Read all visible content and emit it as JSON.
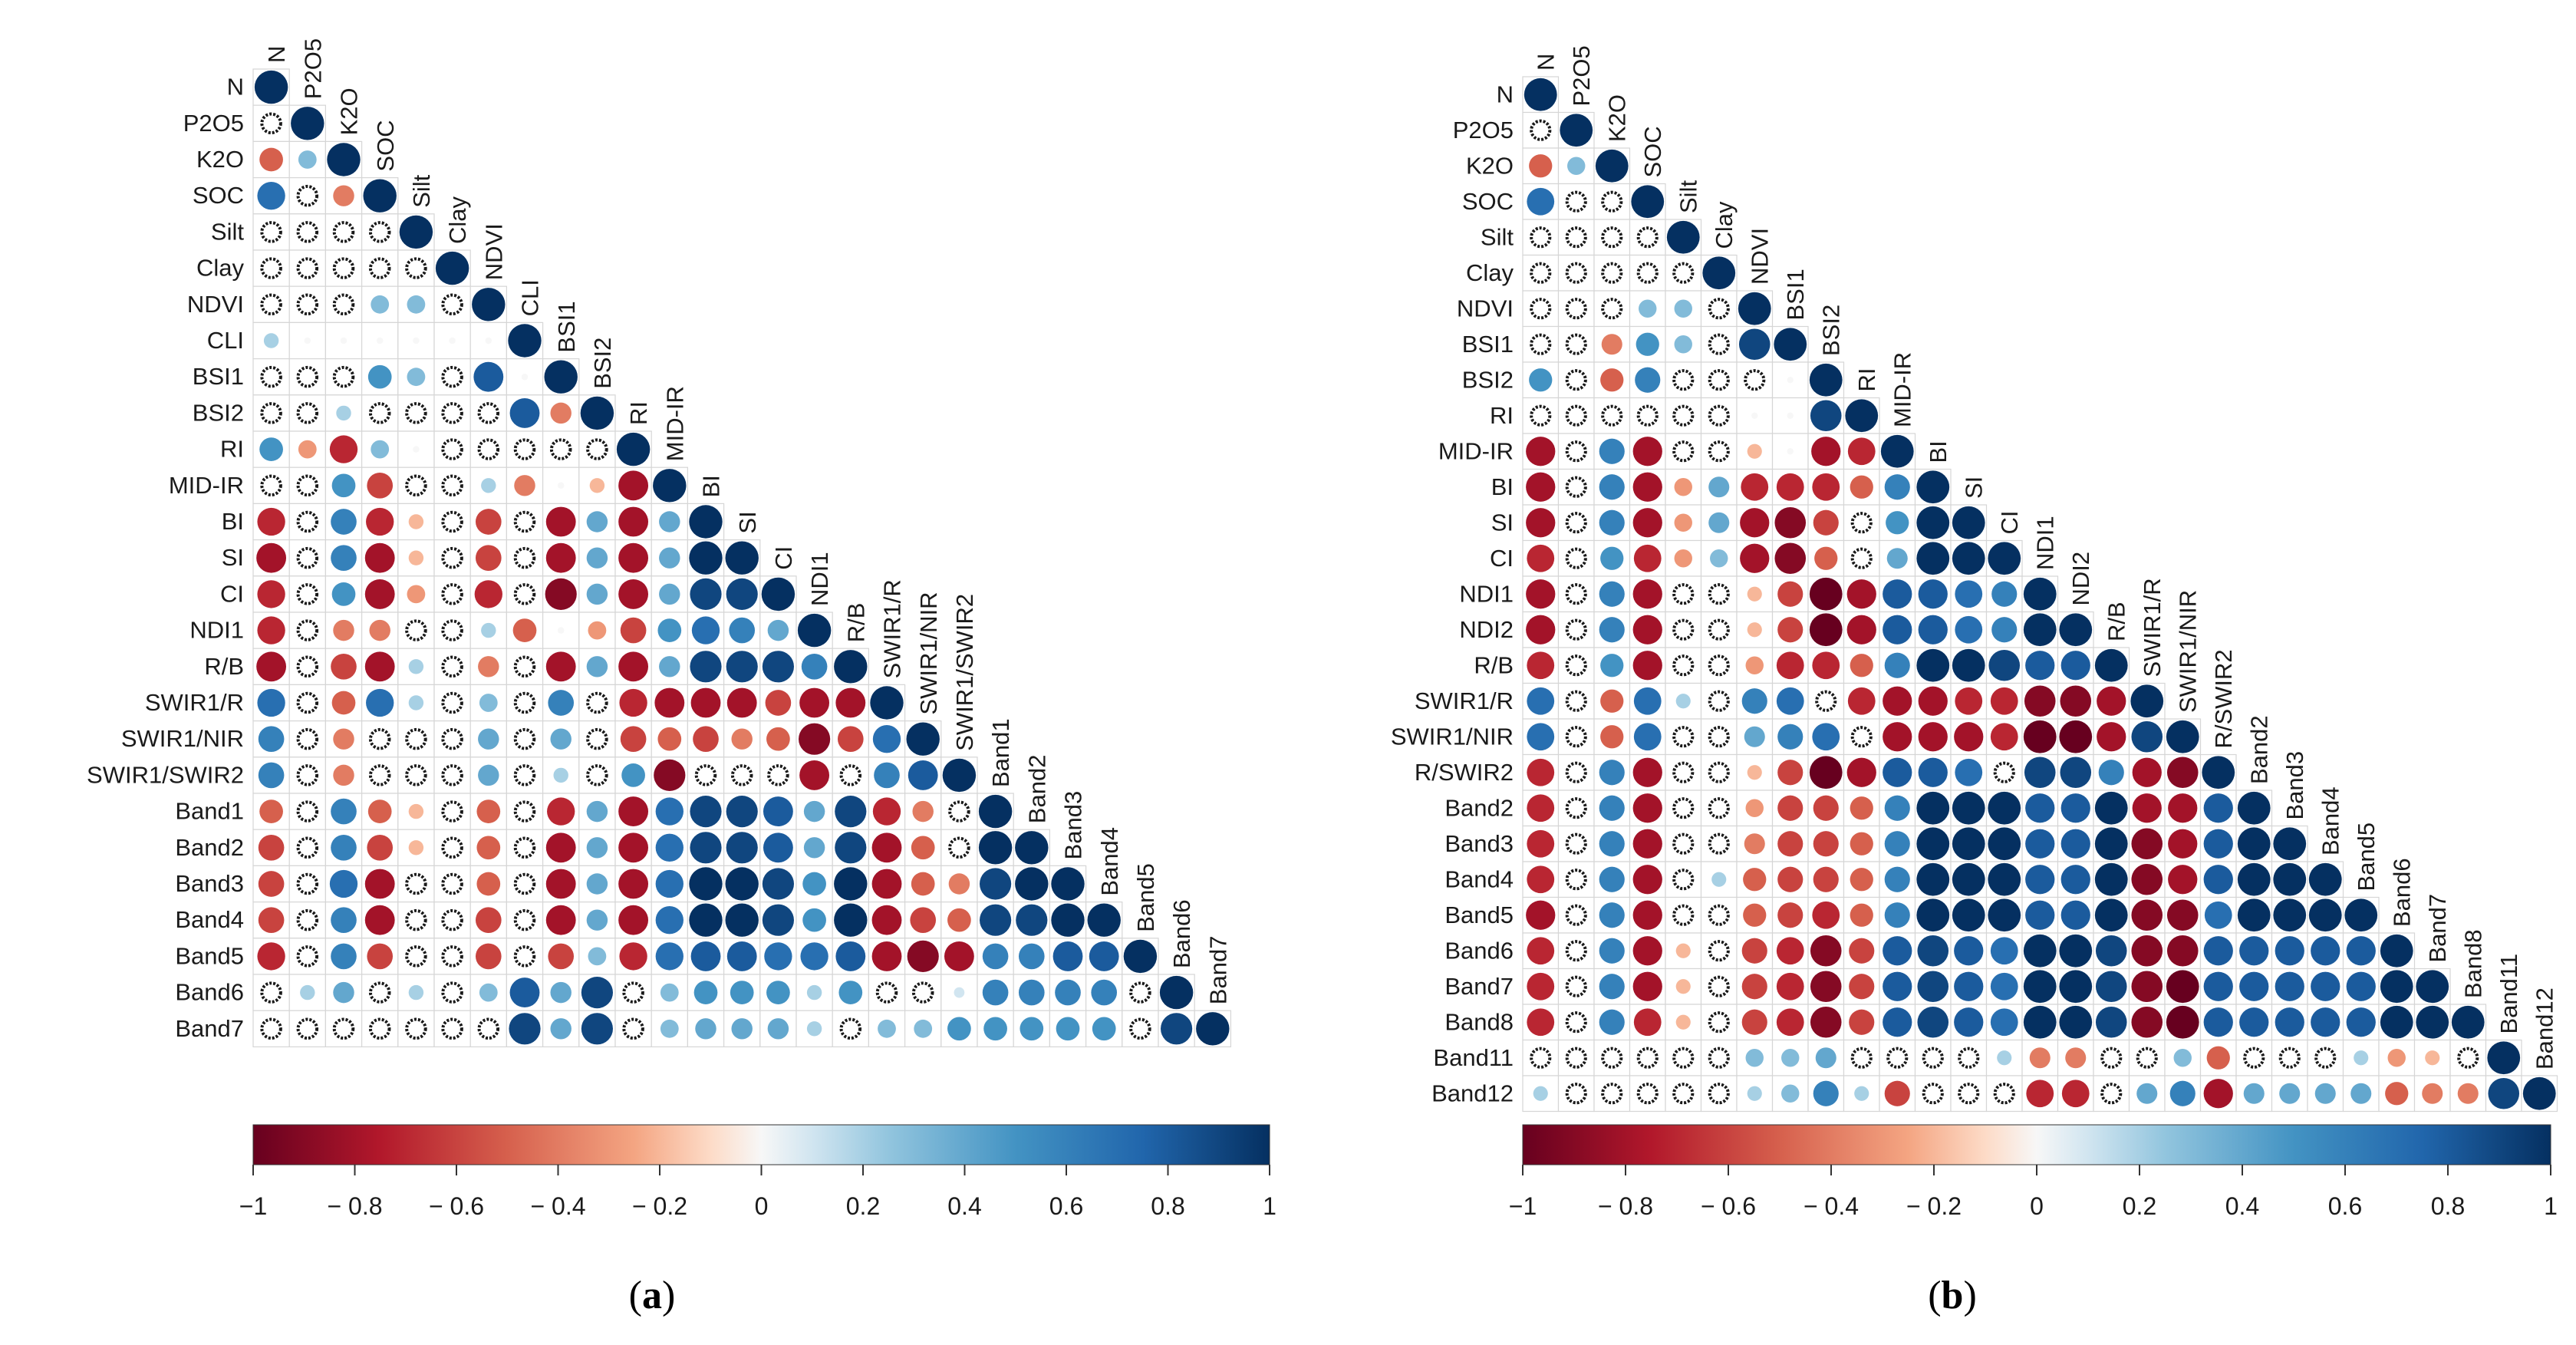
{
  "figure": {
    "panels": [
      {
        "id": "a",
        "caption": "(a)",
        "colorbar_ticks": [
          "−1",
          "− 0.8",
          "− 0.6",
          "− 0.4",
          "− 0.2",
          "0",
          "0.2",
          "0.4",
          "0.6",
          "0.8",
          "1"
        ],
        "variables": [
          "N",
          "P2O5",
          "K2O",
          "SOC",
          "Silt",
          "Clay",
          "NDVI",
          "CLI",
          "BSI1",
          "BSI2",
          "RI",
          "MID-IR",
          "BI",
          "SI",
          "CI",
          "NDI1",
          "R/B",
          "SWIR1/R",
          "SWIR1/NIR",
          "SWIR1/SWIR2",
          "Band1",
          "Band2",
          "Band3",
          "Band4",
          "Band5",
          "Band6",
          "Band7"
        ]
      },
      {
        "id": "b",
        "caption": "(b)",
        "colorbar_ticks": [
          "−1",
          "− 0.8",
          "− 0.6",
          "− 0.4",
          "− 0.2",
          "0",
          "0.2",
          "0.4",
          "0.6",
          "0.8",
          "1"
        ],
        "variables": [
          "N",
          "P2O5",
          "K2O",
          "SOC",
          "Silt",
          "Clay",
          "NDVI",
          "BSI1",
          "BSI2",
          "RI",
          "MID-IR",
          "BI",
          "SI",
          "CI",
          "NDI1",
          "NDI2",
          "R/B",
          "SWIR1/R",
          "SWIR1/NIR",
          "R/SWIR2",
          "Band2",
          "Band3",
          "Band4",
          "Band5",
          "Band6",
          "Band7",
          "Band8",
          "Band11",
          "Band12"
        ]
      }
    ]
  },
  "chart_data": [
    {
      "type": "heatmap",
      "subtype": "correlation-lower-triangle",
      "title": "(a)",
      "variables": [
        "N",
        "P2O5",
        "K2O",
        "SOC",
        "Silt",
        "Clay",
        "NDVI",
        "CLI",
        "BSI1",
        "BSI2",
        "RI",
        "MID-IR",
        "BI",
        "SI",
        "CI",
        "NDI1",
        "R/B",
        "SWIR1/R",
        "SWIR1/NIR",
        "SWIR1/SWIR2",
        "Band1",
        "Band2",
        "Band3",
        "Band4",
        "Band5",
        "Band6",
        "Band7"
      ],
      "colorbar": {
        "min": -1,
        "max": 1,
        "ticks": [
          -1,
          -0.8,
          -0.6,
          -0.4,
          -0.2,
          0,
          0.2,
          0.4,
          0.6,
          0.8,
          1
        ]
      },
      "significance_marker": "hollow circle = non-significant",
      "matrix": [
        [
          "1"
        ],
        [
          "ns",
          "1"
        ],
        [
          "-0.5",
          "0.3",
          "1"
        ],
        [
          "0.7",
          "ns",
          "-0.4",
          "1"
        ],
        [
          "ns",
          "ns",
          "ns",
          "ns",
          "1"
        ],
        [
          "ns",
          "ns",
          "ns",
          "ns",
          "ns",
          "1"
        ],
        [
          "ns",
          "ns",
          "ns",
          "0.3",
          "0.3",
          "ns",
          "1"
        ],
        [
          "0.2",
          "0",
          "0",
          "0",
          "0",
          "0",
          "0",
          "1"
        ],
        [
          "ns",
          "ns",
          "ns",
          "0.5",
          "0.3",
          "ns",
          "0.8",
          "0",
          "1"
        ],
        [
          "ns",
          "ns",
          "0.2",
          "ns",
          "ns",
          "ns",
          "ns",
          "0.8",
          "-0.4",
          "1"
        ],
        [
          "0.5",
          "-0.3",
          "-0.7",
          "0.3",
          "0",
          "ns",
          "ns",
          "ns",
          "ns",
          "ns",
          "1"
        ],
        [
          "ns",
          "ns",
          "0.5",
          "-0.6",
          "ns",
          "ns",
          "0.2",
          "-0.4",
          "0",
          "-0.2",
          "-0.8",
          "1"
        ],
        [
          "-0.7",
          "ns",
          "0.6",
          "-0.7",
          "-0.2",
          "ns",
          "-0.6",
          "ns",
          "-0.8",
          "0.4",
          "-0.8",
          "0.4",
          "1"
        ],
        [
          "-0.8",
          "ns",
          "0.6",
          "-0.8",
          "-0.2",
          "ns",
          "-0.6",
          "ns",
          "-0.8",
          "0.4",
          "-0.8",
          "0.4",
          "1.0",
          "1"
        ],
        [
          "-0.7",
          "ns",
          "0.5",
          "-0.8",
          "-0.3",
          "ns",
          "-0.7",
          "ns",
          "-0.9",
          "0.4",
          "-0.8",
          "0.4",
          "0.9",
          "0.9",
          "1"
        ],
        [
          "-0.7",
          "ns",
          "-0.4",
          "-0.4",
          "ns",
          "ns",
          "0.2",
          "-0.5",
          "0",
          "-0.3",
          "-0.6",
          "0.5",
          "0.7",
          "0.6",
          "0.4",
          "1"
        ],
        [
          "-0.8",
          "ns",
          "-0.6",
          "-0.8",
          "0.2",
          "ns",
          "-0.4",
          "ns",
          "-0.8",
          "0.4",
          "-0.8",
          "0.4",
          "0.9",
          "0.9",
          "0.9",
          "0.6",
          "1"
        ],
        [
          "0.7",
          "ns",
          "-0.5",
          "0.7",
          "0.2",
          "ns",
          "0.3",
          "ns",
          "0.6",
          "ns",
          "-0.7",
          "-0.8",
          "-0.8",
          "-0.8",
          "-0.6",
          "-0.8",
          "-0.8",
          "1"
        ],
        [
          "0.6",
          "ns",
          "-0.4",
          "ns",
          "ns",
          "ns",
          "0.4",
          "ns",
          "0.4",
          "ns",
          "-0.6",
          "-0.5",
          "-0.6",
          "-0.4",
          "-0.5",
          "-0.9",
          "-0.6",
          "0.7",
          "1"
        ],
        [
          "0.6",
          "ns",
          "-0.4",
          "ns",
          "ns",
          "ns",
          "0.4",
          "ns",
          "0.2",
          "ns",
          "0.5",
          "-0.9",
          "ns",
          "ns",
          "ns",
          "-0.8",
          "ns",
          "0.6",
          "0.8",
          "1"
        ],
        [
          "-0.5",
          "ns",
          "0.6",
          "-0.5",
          "-0.2",
          "ns",
          "-0.5",
          "ns",
          "-0.7",
          "0.4",
          "-0.8",
          "0.7",
          "0.9",
          "0.9",
          "0.8",
          "0.4",
          "0.9",
          "-0.7",
          "-0.4",
          "ns",
          "1"
        ],
        [
          "-0.6",
          "ns",
          "0.6",
          "-0.6",
          "-0.2",
          "ns",
          "-0.5",
          "ns",
          "-0.8",
          "0.4",
          "-0.8",
          "0.7",
          "0.9",
          "0.9",
          "0.8",
          "0.4",
          "0.9",
          "-0.8",
          "-0.5",
          "ns",
          "1.0",
          "1"
        ],
        [
          "-0.6",
          "ns",
          "0.7",
          "-0.8",
          "ns",
          "ns",
          "-0.5",
          "ns",
          "-0.8",
          "0.4",
          "-0.8",
          "0.7",
          "1.0",
          "1.0",
          "0.9",
          "0.5",
          "1.0",
          "-0.8",
          "-0.5",
          "-0.4",
          "0.9",
          "1.0",
          "1"
        ],
        [
          "-0.6",
          "ns",
          "0.6",
          "-0.8",
          "ns",
          "ns",
          "-0.6",
          "ns",
          "-0.8",
          "0.4",
          "-0.8",
          "0.7",
          "1.0",
          "1.0",
          "0.9",
          "0.5",
          "1.0",
          "-0.8",
          "-0.6",
          "-0.5",
          "0.9",
          "0.9",
          "1.0",
          "1"
        ],
        [
          "-0.7",
          "ns",
          "0.6",
          "-0.6",
          "ns",
          "ns",
          "-0.6",
          "ns",
          "-0.6",
          "0.3",
          "-0.7",
          "0.7",
          "0.8",
          "0.8",
          "0.7",
          "0.7",
          "0.8",
          "-0.8",
          "-0.9",
          "-0.8",
          "0.6",
          "0.6",
          "0.8",
          "0.8",
          "1"
        ],
        [
          "ns",
          "0.2",
          "0.4",
          "ns",
          "0.2",
          "ns",
          "0.3",
          "0.8",
          "0.4",
          "0.9",
          "ns",
          "0.3",
          "0.5",
          "0.5",
          "0.5",
          "0.2",
          "0.5",
          "ns",
          "ns",
          "0.1",
          "0.6",
          "0.6",
          "0.6",
          "0.6",
          "ns",
          "1"
        ],
        [
          "ns",
          "ns",
          "ns",
          "ns",
          "ns",
          "ns",
          "ns",
          "0.9",
          "0.4",
          "0.9",
          "ns",
          "0.3",
          "0.4",
          "0.4",
          "0.4",
          "0.2",
          "ns",
          "0.3",
          "0.3",
          "0.5",
          "0.5",
          "0.5",
          "0.5",
          "0.5",
          "ns",
          "0.9",
          "1"
        ]
      ]
    },
    {
      "type": "heatmap",
      "subtype": "correlation-lower-triangle",
      "title": "(b)",
      "variables": [
        "N",
        "P2O5",
        "K2O",
        "SOC",
        "Silt",
        "Clay",
        "NDVI",
        "BSI1",
        "BSI2",
        "RI",
        "MID-IR",
        "BI",
        "SI",
        "CI",
        "NDI1",
        "NDI2",
        "R/B",
        "SWIR1/R",
        "SWIR1/NIR",
        "R/SWIR2",
        "Band2",
        "Band3",
        "Band4",
        "Band5",
        "Band6",
        "Band7",
        "Band8",
        "Band11",
        "Band12"
      ],
      "colorbar": {
        "min": -1,
        "max": 1,
        "ticks": [
          -1,
          -0.8,
          -0.6,
          -0.4,
          -0.2,
          0,
          0.2,
          0.4,
          0.6,
          0.8,
          1
        ]
      },
      "significance_marker": "hollow circle = non-significant",
      "matrix": [
        [
          "1"
        ],
        [
          "ns",
          "1"
        ],
        [
          "-0.5",
          "0.3",
          "1"
        ],
        [
          "0.7",
          "ns",
          "ns",
          "1"
        ],
        [
          "ns",
          "ns",
          "ns",
          "ns",
          "1"
        ],
        [
          "ns",
          "ns",
          "ns",
          "ns",
          "ns",
          "1"
        ],
        [
          "ns",
          "ns",
          "ns",
          "0.3",
          "0.3",
          "ns",
          "1"
        ],
        [
          "ns",
          "ns",
          "-0.4",
          "0.5",
          "0.3",
          "ns",
          "0.9",
          "1"
        ],
        [
          "0.5",
          "ns",
          "-0.5",
          "0.6",
          "ns",
          "ns",
          "ns",
          "0",
          "1"
        ],
        [
          "ns",
          "ns",
          "ns",
          "ns",
          "ns",
          "ns",
          "0",
          "0",
          "0.9",
          "1"
        ],
        [
          "-0.8",
          "ns",
          "0.6",
          "-0.8",
          "ns",
          "ns",
          "-0.2",
          "0",
          "-0.8",
          "-0.7",
          "1"
        ],
        [
          "-0.8",
          "ns",
          "0.6",
          "-0.8",
          "-0.3",
          "0.4",
          "-0.7",
          "-0.7",
          "-0.7",
          "-0.5",
          "0.6",
          "1"
        ],
        [
          "-0.8",
          "ns",
          "0.6",
          "-0.8",
          "-0.3",
          "0.4",
          "-0.8",
          "-0.9",
          "-0.6",
          "ns",
          "0.5",
          "1.0",
          "1"
        ],
        [
          "-0.7",
          "ns",
          "0.5",
          "-0.7",
          "-0.3",
          "0.3",
          "-0.8",
          "-0.9",
          "-0.5",
          "ns",
          "0.4",
          "1.0",
          "1.0",
          "1"
        ],
        [
          "-0.8",
          "ns",
          "0.6",
          "-0.8",
          "ns",
          "ns",
          "-0.2",
          "-0.6",
          "-1.0",
          "-0.8",
          "0.8",
          "0.8",
          "0.7",
          "0.6",
          "1"
        ],
        [
          "-0.8",
          "ns",
          "0.6",
          "-0.8",
          "ns",
          "ns",
          "-0.2",
          "-0.6",
          "-1.0",
          "-0.8",
          "0.8",
          "0.8",
          "0.7",
          "0.6",
          "1.0",
          "1"
        ],
        [
          "-0.7",
          "ns",
          "0.5",
          "-0.8",
          "ns",
          "ns",
          "-0.3",
          "-0.7",
          "-0.7",
          "-0.5",
          "0.6",
          "1.0",
          "1.0",
          "0.9",
          "0.8",
          "0.8",
          "1"
        ],
        [
          "0.7",
          "ns",
          "-0.5",
          "0.7",
          "0.2",
          "ns",
          "0.6",
          "0.7",
          "ns",
          "-0.7",
          "-0.8",
          "-0.8",
          "-0.7",
          "-0.7",
          "-0.9",
          "-0.9",
          "-0.8",
          "1"
        ],
        [
          "0.7",
          "ns",
          "-0.5",
          "0.7",
          "ns",
          "ns",
          "0.4",
          "0.6",
          "0.7",
          "ns",
          "-0.8",
          "-0.8",
          "-0.8",
          "-0.7",
          "-1.0",
          "-1.0",
          "-0.8",
          "0.9",
          "1"
        ],
        [
          "-0.7",
          "ns",
          "0.6",
          "-0.8",
          "ns",
          "ns",
          "-0.2",
          "-0.6",
          "-1.0",
          "-0.8",
          "0.8",
          "0.8",
          "0.7",
          "ns",
          "0.9",
          "0.9",
          "0.6",
          "-0.8",
          "-0.9",
          "1"
        ],
        [
          "-0.7",
          "ns",
          "0.6",
          "-0.8",
          "ns",
          "ns",
          "-0.3",
          "-0.6",
          "-0.6",
          "-0.5",
          "0.6",
          "1.0",
          "1.0",
          "1.0",
          "0.8",
          "0.8",
          "1.0",
          "-0.8",
          "-0.8",
          "0.8",
          "1"
        ],
        [
          "-0.7",
          "ns",
          "0.6",
          "-0.8",
          "ns",
          "ns",
          "-0.4",
          "-0.6",
          "-0.6",
          "-0.5",
          "0.6",
          "1.0",
          "1.0",
          "1.0",
          "0.8",
          "0.8",
          "1.0",
          "-0.9",
          "-0.8",
          "0.8",
          "1.0",
          "1"
        ],
        [
          "-0.7",
          "ns",
          "0.6",
          "-0.8",
          "ns",
          "0.2",
          "-0.5",
          "-0.6",
          "-0.6",
          "-0.5",
          "0.6",
          "1.0",
          "1.0",
          "1.0",
          "0.8",
          "0.8",
          "1.0",
          "-0.9",
          "-0.8",
          "0.8",
          "1.0",
          "1.0",
          "1"
        ],
        [
          "-0.8",
          "ns",
          "0.6",
          "-0.8",
          "ns",
          "ns",
          "-0.5",
          "-0.6",
          "-0.7",
          "-0.5",
          "0.6",
          "1.0",
          "1.0",
          "1.0",
          "0.8",
          "0.8",
          "1.0",
          "-0.9",
          "-0.9",
          "0.7",
          "1.0",
          "1.0",
          "1.0",
          "1"
        ],
        [
          "-0.7",
          "ns",
          "0.6",
          "-0.8",
          "-0.2",
          "ns",
          "-0.6",
          "-0.7",
          "-0.9",
          "-0.6",
          "0.8",
          "0.9",
          "0.8",
          "0.7",
          "1.0",
          "1.0",
          "0.9",
          "-0.9",
          "-0.9",
          "0.8",
          "0.8",
          "0.8",
          "0.8",
          "0.8",
          "1"
        ],
        [
          "-0.7",
          "ns",
          "0.6",
          "-0.8",
          "-0.2",
          "ns",
          "-0.6",
          "-0.7",
          "-0.9",
          "-0.6",
          "0.8",
          "0.9",
          "0.8",
          "0.7",
          "1.0",
          "1.0",
          "0.9",
          "-0.9",
          "-1.0",
          "0.8",
          "0.8",
          "0.8",
          "0.8",
          "0.8",
          "1.0",
          "1"
        ],
        [
          "-0.7",
          "ns",
          "0.6",
          "-0.7",
          "-0.2",
          "ns",
          "-0.6",
          "-0.7",
          "-0.9",
          "-0.6",
          "0.8",
          "0.9",
          "0.8",
          "0.7",
          "1.0",
          "1.0",
          "0.9",
          "-0.9",
          "-1.0",
          "0.8",
          "0.8",
          "0.8",
          "0.8",
          "0.8",
          "1.0",
          "1.0",
          "1"
        ],
        [
          "ns",
          "ns",
          "ns",
          "ns",
          "ns",
          "ns",
          "0.3",
          "0.3",
          "0.4",
          "ns",
          "ns",
          "ns",
          "ns",
          "0.2",
          "-0.4",
          "-0.4",
          "ns",
          "ns",
          "0.3",
          "-0.5",
          "ns",
          "ns",
          "ns",
          "0.2",
          "-0.3",
          "-0.2",
          "ns",
          "1"
        ],
        [
          "0.2",
          "ns",
          "ns",
          "ns",
          "ns",
          "ns",
          "0.2",
          "0.3",
          "0.6",
          "0.2",
          "-0.6",
          "ns",
          "ns",
          "ns",
          "-0.7",
          "-0.7",
          "ns",
          "0.4",
          "0.6",
          "-0.8",
          "0.4",
          "0.4",
          "0.4",
          "0.4",
          "-0.5",
          "-0.4",
          "-0.4",
          "0.9",
          "1"
        ]
      ]
    }
  ]
}
